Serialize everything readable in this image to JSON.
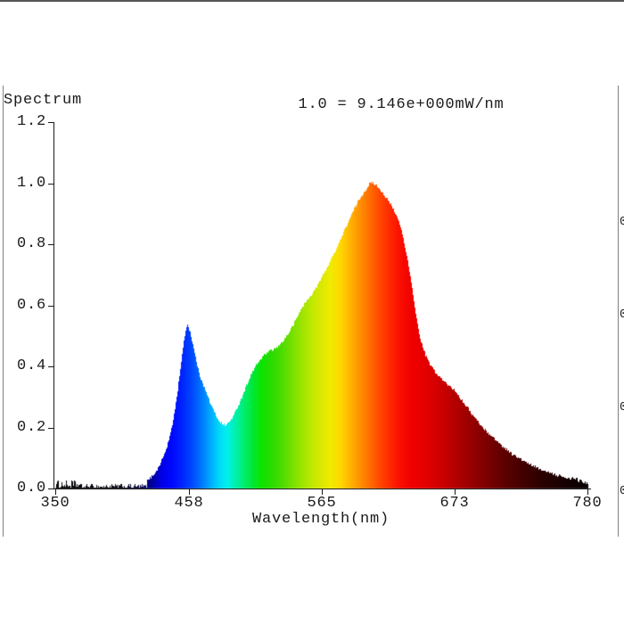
{
  "panel": {
    "title": "Spectrum",
    "scale_annotation": "1.0 = 9.146e+000mW/nm"
  },
  "axes": {
    "xlabel": "Wavelength(nm)",
    "x_tick_labels": [
      "350",
      "458",
      "565",
      "673",
      "780"
    ],
    "y_tick_labels": [
      "1.2",
      "1.0",
      "0.8",
      "0.6",
      "0.4",
      "0.2",
      "0.0"
    ]
  },
  "clipped_right_edge_labels": [
    "0",
    "0",
    "0",
    "0"
  ],
  "colors": {
    "background": "#ffffff",
    "text": "#1a1a1a",
    "panel_border": "#808080",
    "panel_border_bottom": "#555555",
    "axis": "#1a1a1a"
  },
  "chart_data": {
    "type": "area",
    "title": "Spectrum",
    "subtitle": "1.0 = 9.146e+000mW/nm",
    "xlabel": "Wavelength(nm)",
    "ylabel": "",
    "xlim": [
      350,
      780
    ],
    "ylim": [
      0.0,
      1.2
    ],
    "x_ticks": [
      350,
      458,
      565,
      673,
      780
    ],
    "y_ticks": [
      0.0,
      0.2,
      0.4,
      0.6,
      0.8,
      1.0,
      1.2
    ],
    "grid": false,
    "legend": "none",
    "normalization": "1.0 = 9.146e+000mW/nm",
    "peak_absolute_mW_per_nm": 9.146,
    "features": {
      "blue_peak": {
        "wavelength_nm": 456,
        "value": 0.54
      },
      "valley": {
        "wavelength_nm": 485,
        "value": 0.21
      },
      "green_shoulder": {
        "wavelength_nm": 530,
        "value": 0.46
      },
      "main_peak": {
        "wavelength_nm": 604,
        "value": 1.0
      }
    },
    "series": [
      {
        "name": "normalized spectral power",
        "points": [
          [
            350,
            0.006
          ],
          [
            360,
            0.008
          ],
          [
            370,
            0.006
          ],
          [
            380,
            0.005
          ],
          [
            390,
            0.005
          ],
          [
            400,
            0.005
          ],
          [
            410,
            0.007
          ],
          [
            415,
            0.01
          ],
          [
            420,
            0.016
          ],
          [
            425,
            0.028
          ],
          [
            428,
            0.04
          ],
          [
            432,
            0.06
          ],
          [
            436,
            0.095
          ],
          [
            440,
            0.135
          ],
          [
            444,
            0.2
          ],
          [
            448,
            0.3
          ],
          [
            451,
            0.4
          ],
          [
            454,
            0.49
          ],
          [
            456,
            0.54
          ],
          [
            458,
            0.525
          ],
          [
            460,
            0.49
          ],
          [
            463,
            0.43
          ],
          [
            466,
            0.375
          ],
          [
            469,
            0.345
          ],
          [
            472,
            0.31
          ],
          [
            476,
            0.27
          ],
          [
            480,
            0.235
          ],
          [
            484,
            0.213
          ],
          [
            487,
            0.207
          ],
          [
            490,
            0.215
          ],
          [
            494,
            0.24
          ],
          [
            498,
            0.275
          ],
          [
            502,
            0.315
          ],
          [
            506,
            0.355
          ],
          [
            510,
            0.39
          ],
          [
            514,
            0.415
          ],
          [
            518,
            0.435
          ],
          [
            522,
            0.448
          ],
          [
            526,
            0.455
          ],
          [
            530,
            0.465
          ],
          [
            535,
            0.49
          ],
          [
            540,
            0.52
          ],
          [
            545,
            0.56
          ],
          [
            550,
            0.6
          ],
          [
            555,
            0.625
          ],
          [
            560,
            0.655
          ],
          [
            565,
            0.69
          ],
          [
            570,
            0.73
          ],
          [
            575,
            0.77
          ],
          [
            580,
            0.815
          ],
          [
            585,
            0.86
          ],
          [
            590,
            0.905
          ],
          [
            595,
            0.945
          ],
          [
            600,
            0.975
          ],
          [
            604,
            1.0
          ],
          [
            607,
            1.0
          ],
          [
            610,
            0.99
          ],
          [
            613,
            0.975
          ],
          [
            616,
            0.958
          ],
          [
            620,
            0.935
          ],
          [
            624,
            0.905
          ],
          [
            628,
            0.87
          ],
          [
            632,
            0.8
          ],
          [
            636,
            0.71
          ],
          [
            640,
            0.6
          ],
          [
            644,
            0.5
          ],
          [
            648,
            0.445
          ],
          [
            652,
            0.41
          ],
          [
            658,
            0.375
          ],
          [
            664,
            0.35
          ],
          [
            670,
            0.33
          ],
          [
            673,
            0.32
          ],
          [
            680,
            0.28
          ],
          [
            688,
            0.235
          ],
          [
            696,
            0.195
          ],
          [
            704,
            0.165
          ],
          [
            712,
            0.135
          ],
          [
            720,
            0.11
          ],
          [
            728,
            0.09
          ],
          [
            736,
            0.072
          ],
          [
            744,
            0.058
          ],
          [
            752,
            0.046
          ],
          [
            760,
            0.036
          ],
          [
            768,
            0.028
          ],
          [
            775,
            0.022
          ],
          [
            780,
            0.018
          ]
        ]
      }
    ],
    "spectral_color_stops": [
      [
        350,
        "#050508"
      ],
      [
        400,
        "#04040c"
      ],
      [
        418,
        "#020238"
      ],
      [
        428,
        "#0000a0"
      ],
      [
        436,
        "#0000e8"
      ],
      [
        444,
        "#0008ff"
      ],
      [
        452,
        "#0024ff"
      ],
      [
        460,
        "#0048ff"
      ],
      [
        468,
        "#0078ff"
      ],
      [
        475,
        "#00aaff"
      ],
      [
        482,
        "#00d8f8"
      ],
      [
        488,
        "#00f0f0"
      ],
      [
        495,
        "#00f0b0"
      ],
      [
        502,
        "#00ee70"
      ],
      [
        509,
        "#00e838"
      ],
      [
        516,
        "#0ce400"
      ],
      [
        524,
        "#28dc00"
      ],
      [
        532,
        "#48dc00"
      ],
      [
        540,
        "#70e000"
      ],
      [
        548,
        "#98e400"
      ],
      [
        556,
        "#bce800"
      ],
      [
        564,
        "#d8e800"
      ],
      [
        572,
        "#f0ec00"
      ],
      [
        580,
        "#ffd800"
      ],
      [
        588,
        "#ffb400"
      ],
      [
        596,
        "#ff9000"
      ],
      [
        604,
        "#ff6c00"
      ],
      [
        612,
        "#ff4800"
      ],
      [
        620,
        "#ff2a00"
      ],
      [
        628,
        "#fa1000"
      ],
      [
        638,
        "#f00000"
      ],
      [
        650,
        "#e20000"
      ],
      [
        662,
        "#cc0000"
      ],
      [
        673,
        "#b40000"
      ],
      [
        686,
        "#960000"
      ],
      [
        700,
        "#780000"
      ],
      [
        714,
        "#5a0000"
      ],
      [
        728,
        "#420000"
      ],
      [
        742,
        "#2d0000"
      ],
      [
        756,
        "#1c0000"
      ],
      [
        768,
        "#100000"
      ],
      [
        780,
        "#070000"
      ]
    ]
  }
}
